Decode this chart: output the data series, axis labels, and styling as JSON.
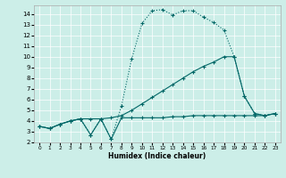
{
  "xlabel": "Humidex (Indice chaleur)",
  "bg_color": "#cceee8",
  "line_color": "#006666",
  "xlim": [
    -0.5,
    23.5
  ],
  "ylim": [
    2,
    14.8
  ],
  "xticks": [
    0,
    1,
    2,
    3,
    4,
    5,
    6,
    7,
    8,
    9,
    10,
    11,
    12,
    13,
    14,
    15,
    16,
    17,
    18,
    19,
    20,
    21,
    22,
    23
  ],
  "xtick_labels": [
    "0",
    "1",
    "2",
    "3",
    "4",
    "5",
    "6",
    "7",
    "8",
    "9",
    "10",
    "11",
    "12",
    "13",
    "14",
    "15",
    "16",
    "17",
    "18",
    "19",
    "20",
    "21",
    "22",
    "23"
  ],
  "yticks": [
    2,
    3,
    4,
    5,
    6,
    7,
    8,
    9,
    10,
    11,
    12,
    13,
    14
  ],
  "line1_x": [
    0,
    1,
    2,
    3,
    4,
    5,
    6,
    7,
    8,
    9,
    10,
    11,
    12,
    13,
    14,
    15,
    16,
    17,
    18,
    19,
    20,
    21,
    22,
    23
  ],
  "line1_y": [
    3.5,
    3.3,
    3.7,
    4.0,
    4.2,
    2.7,
    4.2,
    2.3,
    5.4,
    9.8,
    13.1,
    14.3,
    14.4,
    13.9,
    14.3,
    14.3,
    13.7,
    13.2,
    12.5,
    10.0,
    6.3,
    4.7,
    4.5,
    4.7
  ],
  "line1_dotted": true,
  "line2_x": [
    0,
    1,
    2,
    3,
    4,
    5,
    6,
    7,
    8,
    9,
    10,
    11,
    12,
    13,
    14,
    15,
    16,
    17,
    18,
    19,
    20,
    21,
    22,
    23
  ],
  "line2_y": [
    3.5,
    3.3,
    3.7,
    4.0,
    4.2,
    4.2,
    4.2,
    4.3,
    4.5,
    5.0,
    5.6,
    6.2,
    6.8,
    7.4,
    8.0,
    8.6,
    9.1,
    9.5,
    10.0,
    10.0,
    6.3,
    4.7,
    4.5,
    4.7
  ],
  "line3_x": [
    0,
    1,
    2,
    3,
    4,
    5,
    6,
    7,
    8,
    9,
    10,
    11,
    12,
    13,
    14,
    15,
    16,
    17,
    18,
    19,
    20,
    21,
    22,
    23
  ],
  "line3_y": [
    3.5,
    3.3,
    3.7,
    4.0,
    4.2,
    2.7,
    4.2,
    2.3,
    4.3,
    4.3,
    4.3,
    4.3,
    4.3,
    4.4,
    4.4,
    4.5,
    4.5,
    4.5,
    4.5,
    4.5,
    4.5,
    4.5,
    4.5,
    4.7
  ]
}
